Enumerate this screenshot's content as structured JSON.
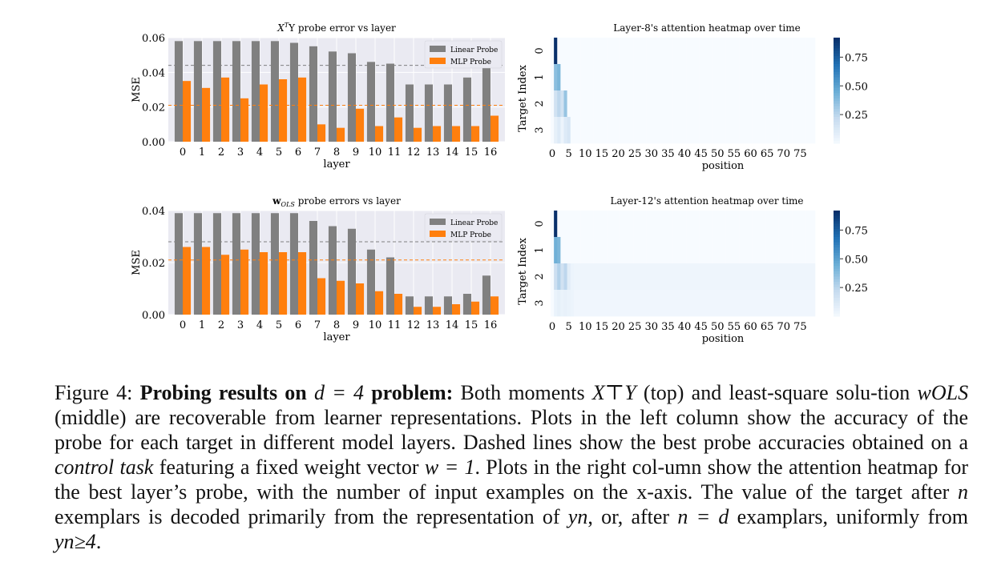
{
  "chart_data": [
    {
      "type": "bar",
      "title": "X⊤Y probe error vs layer",
      "title_main": "X",
      "title_sup": "T",
      "title_rest": "Y probe error vs layer",
      "xlabel": "layer",
      "ylabel": "MSE",
      "categories": [
        "0",
        "1",
        "2",
        "3",
        "4",
        "5",
        "6",
        "7",
        "8",
        "9",
        "10",
        "11",
        "12",
        "13",
        "14",
        "15",
        "16"
      ],
      "ylim": [
        0,
        0.06
      ],
      "yticks": [
        "0.00",
        "0.02",
        "0.04",
        "0.06"
      ],
      "grid": true,
      "legend": "top-right",
      "series": [
        {
          "name": "Linear Probe",
          "color": "#808080",
          "values": [
            0.058,
            0.058,
            0.058,
            0.058,
            0.058,
            0.058,
            0.057,
            0.055,
            0.052,
            0.051,
            0.046,
            0.045,
            0.033,
            0.033,
            0.033,
            0.037,
            0.043
          ]
        },
        {
          "name": "MLP Probe",
          "color": "#ff7f0e",
          "values": [
            0.035,
            0.031,
            0.037,
            0.025,
            0.033,
            0.036,
            0.037,
            0.01,
            0.008,
            0.019,
            0.009,
            0.014,
            0.008,
            0.009,
            0.009,
            0.009,
            0.015
          ]
        }
      ],
      "reference_lines": [
        {
          "color": "#808080",
          "style": "dashed",
          "value": 0.044
        },
        {
          "color": "#ff7f0e",
          "style": "dashed",
          "value": 0.021
        }
      ]
    },
    {
      "type": "heatmap",
      "title": "Layer-8's attention heatmap over time",
      "xlabel": "position",
      "ylabel": "Target Index",
      "xticks": [
        "0",
        "5",
        "10",
        "15",
        "20",
        "25",
        "30",
        "35",
        "40",
        "45",
        "50",
        "55",
        "60",
        "65",
        "70",
        "75"
      ],
      "yticks": [
        "0",
        "1",
        "2",
        "3"
      ],
      "colorbar_ticks": [
        "0.75",
        "0.50",
        "0.25"
      ],
      "colorbar_range": [
        0,
        0.92
      ],
      "colormap": "Blues",
      "rows": [
        {
          "target": 0,
          "values": [
            0,
            0.92,
            0,
            0,
            0,
            0,
            0
          ],
          "tail": 0.0
        },
        {
          "target": 1,
          "values": [
            0,
            0.38,
            0.42,
            0,
            0,
            0,
            0
          ],
          "tail": 0.0
        },
        {
          "target": 2,
          "values": [
            0,
            0.18,
            0.25,
            0.18,
            0.35,
            0,
            0
          ],
          "tail": 0.0
        },
        {
          "target": 3,
          "values": [
            0,
            0.08,
            0.12,
            0.05,
            0.12,
            0.15,
            0
          ],
          "tail": 0.0
        }
      ]
    },
    {
      "type": "bar",
      "title": "wOLS probe errors vs layer",
      "title_main": "w",
      "title_sub": "OLS",
      "title_rest": " probe errors vs layer",
      "xlabel": "layer",
      "ylabel": "MSE",
      "categories": [
        "0",
        "1",
        "2",
        "3",
        "4",
        "5",
        "6",
        "7",
        "8",
        "9",
        "10",
        "11",
        "12",
        "13",
        "14",
        "15",
        "16"
      ],
      "ylim": [
        0,
        0.04
      ],
      "yticks": [
        "0.00",
        "0.02",
        "0.04"
      ],
      "grid": true,
      "legend": "top-right",
      "series": [
        {
          "name": "Linear Probe",
          "color": "#808080",
          "values": [
            0.039,
            0.039,
            0.039,
            0.039,
            0.039,
            0.039,
            0.039,
            0.036,
            0.034,
            0.033,
            0.025,
            0.022,
            0.007,
            0.007,
            0.007,
            0.008,
            0.015
          ]
        },
        {
          "name": "MLP Probe",
          "color": "#ff7f0e",
          "values": [
            0.026,
            0.026,
            0.023,
            0.025,
            0.024,
            0.024,
            0.024,
            0.014,
            0.013,
            0.012,
            0.009,
            0.008,
            0.003,
            0.003,
            0.004,
            0.005,
            0.007
          ]
        }
      ],
      "reference_lines": [
        {
          "color": "#808080",
          "style": "dashed",
          "value": 0.028
        },
        {
          "color": "#ff7f0e",
          "style": "dashed",
          "value": 0.021
        }
      ]
    },
    {
      "type": "heatmap",
      "title": "Layer-12's attention heatmap over time",
      "xlabel": "position",
      "ylabel": "Target Index",
      "xticks": [
        "0",
        "5",
        "10",
        "15",
        "20",
        "25",
        "30",
        "35",
        "40",
        "45",
        "50",
        "55",
        "60",
        "65",
        "70",
        "75"
      ],
      "yticks": [
        "0",
        "1",
        "2",
        "3"
      ],
      "colorbar_ticks": [
        "0.75",
        "0.50",
        "0.25"
      ],
      "colorbar_range": [
        0,
        0.92
      ],
      "colormap": "Blues",
      "rows": [
        {
          "target": 0,
          "values": [
            0,
            0.92,
            0,
            0,
            0,
            0,
            0
          ],
          "tail": 0.0
        },
        {
          "target": 1,
          "values": [
            0,
            0.45,
            0.42,
            0,
            0,
            0,
            0
          ],
          "tail": 0.0
        },
        {
          "target": 2,
          "values": [
            0,
            0.2,
            0.28,
            0.18,
            0.25,
            0.1,
            0.05
          ],
          "tail": 0.04
        },
        {
          "target": 3,
          "values": [
            0,
            0.06,
            0.08,
            0.06,
            0.07,
            0.06,
            0.05
          ],
          "tail": 0.035
        }
      ]
    }
  ],
  "caption": {
    "figure_label": "Figure 4:",
    "bold_lead_a": "Probing results on",
    "bold_lead_math": "d = 4",
    "bold_lead_b": "problem:",
    "text_1": "Both moments",
    "math_1": "X⊤Y",
    "text_2": "(top) and least-square solu-tion",
    "math_2": "wOLS",
    "text_3": "(middle) are recoverable from learner representations. Plots in the left column show the accuracy of the probe for each target in different model layers. Dashed lines show the best probe accuracies obtained on a",
    "italic_1": "control task",
    "text_4": "featuring a fixed weight vector",
    "math_3": "w = 1",
    "text_5": ". Plots in the right col-umn show the attention heatmap for the best layer’s probe, with the number of input examples on the x-axis. The value of the target after",
    "math_4": "n",
    "text_6": "exemplars is decoded primarily from the representation of",
    "math_5": "yn",
    "text_7": ", or, after",
    "math_6": "n = d",
    "text_8": "examplars, uniformly from",
    "math_7": "yn≥4",
    "text_9": "."
  }
}
